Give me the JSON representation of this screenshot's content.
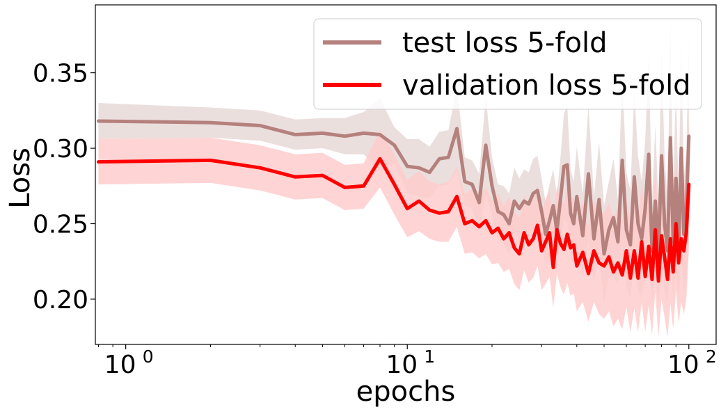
{
  "chart_data": {
    "type": "line",
    "title": "",
    "xlabel": "epochs",
    "ylabel": "Loss",
    "xscale": "log",
    "xlim": [
      0.78,
      125
    ],
    "ylim": [
      0.17,
      0.395
    ],
    "grid": false,
    "legend_position": "top-right",
    "xticks": [
      {
        "value": 1,
        "label": "10",
        "exp": "0"
      },
      {
        "value": 10,
        "label": "10",
        "exp": "1"
      },
      {
        "value": 100,
        "label": "10",
        "exp": "2"
      }
    ],
    "yticks": [
      {
        "value": 0.2,
        "label": "0.20"
      },
      {
        "value": 0.25,
        "label": "0.25"
      },
      {
        "value": 0.3,
        "label": "0.30"
      },
      {
        "value": 0.35,
        "label": "0.35"
      }
    ],
    "series": [
      {
        "name": "test loss 5-fold",
        "color": "#b5817d",
        "band_color": "#e8d9d8",
        "x": [
          0.8,
          2,
          3,
          4,
          5,
          6,
          7,
          8,
          9,
          10,
          11,
          12,
          13,
          14,
          15,
          16,
          17,
          18,
          19,
          20,
          21,
          22,
          23,
          24,
          25,
          26,
          27,
          28,
          29,
          30,
          31,
          32,
          33,
          34,
          35,
          36,
          37,
          38,
          39,
          40,
          42,
          44,
          46,
          48,
          50,
          52,
          54,
          56,
          58,
          60,
          62,
          64,
          66,
          68,
          70,
          72,
          74,
          76,
          78,
          80,
          82,
          84,
          86,
          88,
          90,
          92,
          94,
          96,
          98,
          100
        ],
        "y": [
          0.318,
          0.317,
          0.315,
          0.309,
          0.31,
          0.308,
          0.31,
          0.309,
          0.302,
          0.288,
          0.287,
          0.284,
          0.293,
          0.294,
          0.313,
          0.278,
          0.276,
          0.264,
          0.302,
          0.275,
          0.258,
          0.256,
          0.25,
          0.265,
          0.26,
          0.265,
          0.263,
          0.27,
          0.272,
          0.258,
          0.243,
          0.252,
          0.262,
          0.245,
          0.266,
          0.288,
          0.289,
          0.257,
          0.25,
          0.268,
          0.242,
          0.283,
          0.24,
          0.266,
          0.23,
          0.246,
          0.254,
          0.238,
          0.292,
          0.246,
          0.236,
          0.281,
          0.25,
          0.24,
          0.26,
          0.296,
          0.232,
          0.265,
          0.23,
          0.295,
          0.25,
          0.232,
          0.307,
          0.238,
          0.28,
          0.232,
          0.3,
          0.243,
          0.257,
          0.308
        ],
        "lower": [
          0.306,
          0.307,
          0.305,
          0.299,
          0.3,
          0.296,
          0.296,
          0.285,
          0.29,
          0.27,
          0.268,
          0.267,
          0.275,
          0.276,
          0.285,
          0.262,
          0.26,
          0.245,
          0.27,
          0.256,
          0.24,
          0.237,
          0.23,
          0.243,
          0.24,
          0.244,
          0.242,
          0.247,
          0.249,
          0.236,
          0.222,
          0.228,
          0.238,
          0.221,
          0.238,
          0.253,
          0.25,
          0.228,
          0.222,
          0.235,
          0.214,
          0.238,
          0.212,
          0.228,
          0.198,
          0.214,
          0.215,
          0.21,
          0.235,
          0.208,
          0.2,
          0.225,
          0.205,
          0.202,
          0.215,
          0.23,
          0.198,
          0.215,
          0.195,
          0.225,
          0.205,
          0.198,
          0.23,
          0.2,
          0.22,
          0.195,
          0.23,
          0.205,
          0.215,
          0.24
        ],
        "upper": [
          0.33,
          0.327,
          0.325,
          0.319,
          0.32,
          0.32,
          0.324,
          0.333,
          0.314,
          0.306,
          0.306,
          0.301,
          0.311,
          0.312,
          0.341,
          0.294,
          0.292,
          0.283,
          0.334,
          0.294,
          0.276,
          0.275,
          0.27,
          0.287,
          0.28,
          0.286,
          0.284,
          0.293,
          0.295,
          0.28,
          0.264,
          0.276,
          0.286,
          0.269,
          0.294,
          0.323,
          0.328,
          0.286,
          0.278,
          0.301,
          0.27,
          0.328,
          0.268,
          0.304,
          0.262,
          0.278,
          0.293,
          0.266,
          0.349,
          0.284,
          0.272,
          0.337,
          0.295,
          0.278,
          0.305,
          0.362,
          0.266,
          0.315,
          0.265,
          0.365,
          0.295,
          0.266,
          0.384,
          0.276,
          0.34,
          0.269,
          0.37,
          0.281,
          0.299,
          0.376
        ]
      },
      {
        "name": "validation loss 5-fold",
        "color": "#ff0000",
        "band_color": "#ffcccc",
        "x": [
          0.8,
          2,
          3,
          4,
          5,
          6,
          7,
          8,
          9,
          10,
          11,
          12,
          13,
          14,
          15,
          16,
          17,
          18,
          19,
          20,
          21,
          22,
          23,
          24,
          25,
          26,
          27,
          28,
          29,
          30,
          31,
          32,
          33,
          34,
          35,
          36,
          37,
          38,
          39,
          40,
          42,
          44,
          46,
          48,
          50,
          52,
          54,
          56,
          58,
          60,
          62,
          64,
          66,
          68,
          70,
          72,
          74,
          76,
          78,
          80,
          82,
          84,
          86,
          88,
          90,
          92,
          94,
          96,
          98,
          100
        ],
        "y": [
          0.291,
          0.292,
          0.287,
          0.281,
          0.282,
          0.274,
          0.275,
          0.293,
          0.276,
          0.26,
          0.265,
          0.259,
          0.257,
          0.258,
          0.268,
          0.25,
          0.252,
          0.248,
          0.252,
          0.244,
          0.247,
          0.24,
          0.244,
          0.234,
          0.23,
          0.244,
          0.236,
          0.24,
          0.249,
          0.232,
          0.238,
          0.244,
          0.221,
          0.246,
          0.237,
          0.233,
          0.243,
          0.234,
          0.236,
          0.222,
          0.231,
          0.217,
          0.232,
          0.224,
          0.222,
          0.228,
          0.218,
          0.224,
          0.216,
          0.232,
          0.214,
          0.232,
          0.214,
          0.238,
          0.215,
          0.235,
          0.213,
          0.246,
          0.212,
          0.242,
          0.228,
          0.213,
          0.24,
          0.218,
          0.25,
          0.224,
          0.24,
          0.232,
          0.244,
          0.276
        ],
        "lower": [
          0.276,
          0.277,
          0.272,
          0.266,
          0.267,
          0.259,
          0.26,
          0.274,
          0.256,
          0.241,
          0.245,
          0.24,
          0.238,
          0.238,
          0.248,
          0.23,
          0.231,
          0.227,
          0.23,
          0.223,
          0.224,
          0.218,
          0.22,
          0.21,
          0.206,
          0.219,
          0.211,
          0.214,
          0.222,
          0.206,
          0.21,
          0.215,
          0.194,
          0.217,
          0.208,
          0.203,
          0.211,
          0.202,
          0.204,
          0.192,
          0.198,
          0.185,
          0.198,
          0.19,
          0.187,
          0.192,
          0.182,
          0.187,
          0.18,
          0.195,
          0.178,
          0.194,
          0.178,
          0.198,
          0.178,
          0.196,
          0.176,
          0.205,
          0.175,
          0.2,
          0.188,
          0.175,
          0.197,
          0.18,
          0.206,
          0.184,
          0.198,
          0.19,
          0.2,
          0.232
        ],
        "upper": [
          0.306,
          0.307,
          0.302,
          0.296,
          0.297,
          0.289,
          0.29,
          0.312,
          0.296,
          0.279,
          0.285,
          0.278,
          0.276,
          0.278,
          0.288,
          0.27,
          0.273,
          0.269,
          0.274,
          0.265,
          0.27,
          0.262,
          0.268,
          0.258,
          0.254,
          0.269,
          0.261,
          0.266,
          0.276,
          0.258,
          0.266,
          0.273,
          0.248,
          0.275,
          0.266,
          0.263,
          0.275,
          0.266,
          0.268,
          0.252,
          0.264,
          0.249,
          0.266,
          0.258,
          0.257,
          0.264,
          0.254,
          0.261,
          0.252,
          0.269,
          0.25,
          0.27,
          0.25,
          0.278,
          0.252,
          0.274,
          0.25,
          0.287,
          0.249,
          0.284,
          0.268,
          0.251,
          0.283,
          0.256,
          0.294,
          0.264,
          0.282,
          0.274,
          0.288,
          0.32
        ]
      }
    ]
  }
}
